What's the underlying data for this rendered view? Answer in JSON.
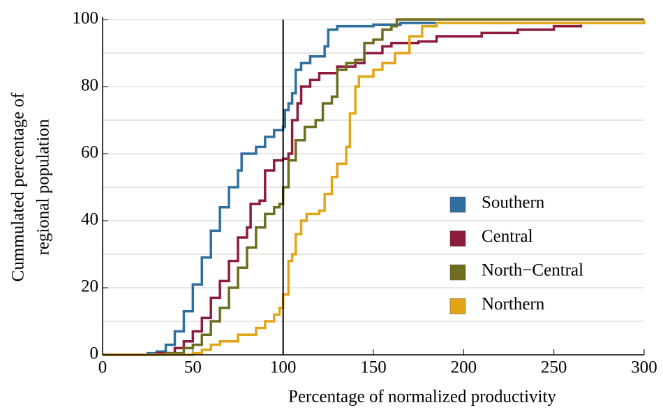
{
  "chart_data": {
    "type": "step",
    "xlabel": "Percentage of normalized productivity",
    "ylabel": [
      "Cummulated percentage of",
      "regional population"
    ],
    "xlim": [
      0,
      300
    ],
    "xticks": [
      0,
      50,
      100,
      150,
      200,
      250,
      300
    ],
    "ylim": [
      0,
      100
    ],
    "yticks": [
      0,
      20,
      40,
      60,
      80,
      100
    ],
    "y_minor_grid": [
      10,
      30,
      50,
      70,
      90
    ],
    "grid": true,
    "reference_line_x": 100,
    "legend": "right",
    "series": [
      {
        "name": "Southern",
        "color": "#2f6f9f",
        "x": [
          0,
          25,
          30,
          35,
          40,
          45,
          50,
          55,
          60,
          65,
          70,
          75,
          77,
          85,
          90,
          95,
          100,
          101,
          103,
          105,
          107,
          110,
          115,
          123,
          125,
          130,
          150,
          165,
          219
        ],
        "values": [
          0,
          0.5,
          1,
          3,
          7,
          13,
          21,
          29,
          37,
          44,
          50,
          55,
          60,
          62,
          65,
          67,
          68,
          73,
          75,
          78,
          85,
          87,
          89,
          92,
          97,
          98,
          98.5,
          99,
          99
        ]
      },
      {
        "name": "Central",
        "color": "#8c1b3c",
        "x": [
          0,
          30,
          40,
          45,
          50,
          55,
          60,
          65,
          70,
          75,
          80,
          82,
          87,
          90,
          95,
          100,
          103,
          105,
          108,
          110,
          115,
          120,
          130,
          140,
          145,
          155,
          160,
          175,
          185,
          210,
          230,
          250,
          265
        ],
        "values": [
          0,
          0.5,
          2,
          4,
          7,
          11,
          17,
          22,
          28,
          35,
          38,
          45,
          46,
          55,
          58,
          58.5,
          60,
          70,
          75,
          80,
          82,
          84,
          86,
          87,
          90,
          92,
          93,
          93.5,
          95,
          96,
          97,
          98,
          98.5
        ]
      },
      {
        "name": "North−Central",
        "color": "#6e6c1f",
        "x": [
          0,
          35,
          45,
          50,
          55,
          60,
          65,
          70,
          75,
          80,
          85,
          90,
          95,
          98,
          100,
          103,
          107,
          112,
          118,
          122,
          127,
          130,
          135,
          140,
          145,
          150,
          155,
          160,
          163,
          300
        ],
        "values": [
          0,
          0.5,
          2,
          3,
          6,
          10,
          14,
          20,
          26,
          32,
          38,
          42,
          44,
          45,
          50,
          58,
          64,
          68,
          70,
          75,
          77,
          85,
          87,
          88,
          93,
          94,
          97,
          98,
          100,
          100
        ]
      },
      {
        "name": "Northern",
        "color": "#e1a516",
        "x": [
          0,
          50,
          55,
          60,
          65,
          75,
          85,
          90,
          95,
          98,
          100,
          103,
          105,
          107,
          110,
          113,
          120,
          123,
          127,
          130,
          135,
          137,
          140,
          142,
          150,
          155,
          162,
          170,
          177,
          185,
          300
        ],
        "values": [
          0,
          0.5,
          1.5,
          3,
          4,
          6,
          8,
          10,
          12,
          14,
          18,
          28,
          30,
          36,
          40,
          42,
          43,
          48,
          53,
          57,
          62,
          72,
          80,
          83,
          85,
          87,
          90,
          95,
          98,
          99,
          100
        ]
      }
    ]
  }
}
